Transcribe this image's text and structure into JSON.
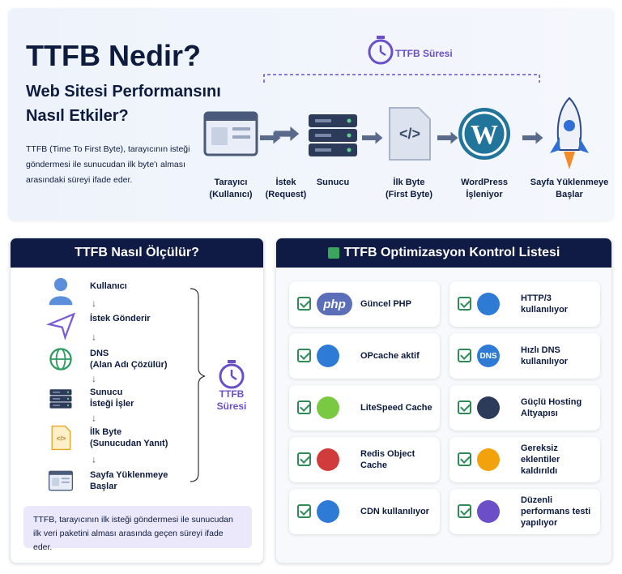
{
  "header": {
    "title": "TTFB Nedir?",
    "subtitle": [
      "Web Sitesi Performansını",
      "Nasıl Etkiler?"
    ],
    "description": "TTFB (Time To First Byte), tarayıcının isteği göndermesi ile sunucudan ilk byte'ı alması arasındaki süreyi ifade eder."
  },
  "flow": {
    "span_label": "TTFB Süresi",
    "steps": [
      {
        "lines": [
          "Tarayıcı",
          "(Kullanıcı)"
        ]
      },
      {
        "lines": [
          "İstek",
          "(Request)"
        ]
      },
      {
        "lines": [
          "Sunucu"
        ]
      },
      {
        "lines": [
          "İlk Byte",
          "(First Byte)"
        ],
        "icon_text": "</>"
      },
      {
        "lines": [
          "WordPress",
          "İşleniyor"
        ]
      },
      {
        "lines": [
          "Sayfa Yüklenmeye",
          "Başlar"
        ]
      }
    ]
  },
  "measure": {
    "title": "TTFB Nasıl Ölçülür?",
    "steps": [
      {
        "lines": [
          "Kullanıcı"
        ]
      },
      {
        "lines": [
          "İstek Gönderir"
        ]
      },
      {
        "lines": [
          "DNS",
          "(Alan Adı Çözülür)"
        ]
      },
      {
        "lines": [
          "Sunucu",
          "İsteği İşler"
        ]
      },
      {
        "lines": [
          "İlk Byte",
          "(Sunucudan Yanıt)"
        ],
        "icon_text": "</>"
      },
      {
        "lines": [
          "Sayfa Yüklenmeye",
          "Başlar"
        ]
      }
    ],
    "span_label": [
      "TTFB",
      "Süresi"
    ],
    "note": "TTFB, tarayıcının ilk isteği göndermesi ile sunucudan ilk veri paketini alması arasında geçen süreyi ifade eder."
  },
  "checklist": {
    "title": "TTFB Optimizasyon Kontrol Listesi",
    "columns": [
      [
        {
          "text": "Güncel PHP",
          "icon_text": "php"
        },
        {
          "text": "OPcache aktif"
        },
        {
          "text": "LiteSpeed Cache"
        },
        {
          "text": "Redis Object Cache"
        },
        {
          "text": "CDN kullanılıyor"
        }
      ],
      [
        {
          "text": "HTTP/3 kullanılıyor"
        },
        {
          "text": "Hızlı DNS kullanılıyor",
          "icon_text": "DNS"
        },
        {
          "text": "Güçlü Hosting Altyapısı"
        },
        {
          "text": "Gereksiz eklentiler kaldırıldı"
        },
        {
          "text": "Düzenli performans testi yapılıyor"
        }
      ]
    ]
  }
}
